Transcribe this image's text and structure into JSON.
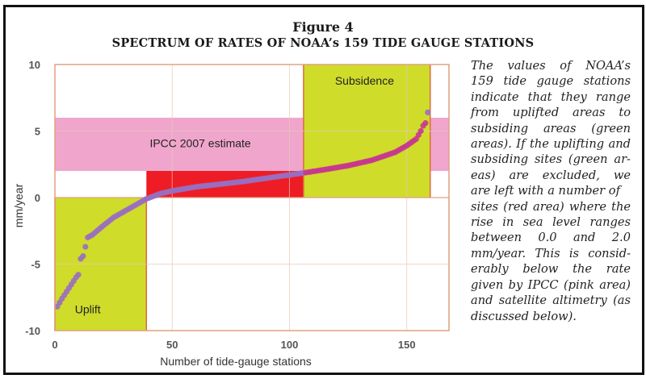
{
  "figure": {
    "number_label": "Figure 4",
    "title": "SPECTRUM OF RATES OF NOAA’s 159 TIDE GAUGE STATIONS"
  },
  "caption_lines": [
    "The values of NOAA’s",
    "159 tide gauge stations",
    "indicate that they range",
    "from uplifted areas to",
    "subsiding areas (green",
    "areas). If the uplifting and",
    "subsiding sites (green ar-",
    "eas) are excluded, we",
    "are left with a number of",
    "sites (red area) where the",
    "rise in sea level ranges",
    "between 0.0 and 2.0",
    "mm/year. This is consid-",
    "erably below the rate",
    "given by IPCC (pink area)",
    "and satellite altimetry (as",
    "discussed below)."
  ],
  "colors": {
    "uplift_subsidence": "#cfdc2a",
    "ipcc": "#f0a6cc",
    "red_area": "#ee1c24",
    "points_low": "#9a6ec0",
    "points_high": "#c8378f",
    "axis_border": "#e0a080"
  },
  "chart_data": {
    "type": "scatter",
    "title": "SPECTRUM OF RATES OF NOAA’s 159 TIDE GAUGE STATIONS",
    "xlabel": "Number of tide-gauge stations",
    "ylabel": "mm/year",
    "xlim": [
      0,
      168
    ],
    "ylim": [
      -10,
      10
    ],
    "xticks": [
      "0",
      "50",
      "100",
      "150"
    ],
    "xtick_values": [
      0,
      50,
      100,
      150
    ],
    "yticks": [
      "10",
      "5",
      "0",
      "-5",
      "-10"
    ],
    "ytick_values": [
      10,
      5,
      0,
      -5,
      -10
    ],
    "grid": true,
    "regions": [
      {
        "name": "Uplift",
        "label": "Uplift",
        "x": [
          0,
          39
        ],
        "y": [
          -10,
          0
        ],
        "color": "#cfdc2a"
      },
      {
        "name": "Subsidence",
        "label": "Subsidence",
        "x": [
          106,
          160
        ],
        "y": [
          0,
          10
        ],
        "color": "#cfdc2a"
      },
      {
        "name": "IPCC 2007 estimate",
        "label": "IPCC 2007 estimate",
        "x": [
          0,
          168
        ],
        "y": [
          2,
          6
        ],
        "color": "#f0a6cc"
      },
      {
        "name": "Red area",
        "label": "",
        "x": [
          39,
          106
        ],
        "y": [
          0,
          2
        ],
        "color": "#ee1c24"
      }
    ],
    "series": [
      {
        "name": "NOAA tide gauge stations (sorted)",
        "anchor_x": [
          1,
          3,
          6,
          9,
          10,
          11,
          12,
          13,
          14,
          16,
          20,
          25,
          30,
          35,
          39,
          45,
          50,
          60,
          70,
          80,
          90,
          100,
          106,
          115,
          125,
          135,
          145,
          150,
          154,
          156,
          157,
          158,
          159
        ],
        "anchor_y": [
          -8.2,
          -7.6,
          -6.8,
          -6.0,
          -5.8,
          -4.6,
          -4.4,
          -3.7,
          -3.0,
          -2.8,
          -2.2,
          -1.5,
          -1.0,
          -0.5,
          -0.1,
          0.3,
          0.5,
          0.8,
          1.0,
          1.2,
          1.45,
          1.7,
          1.85,
          2.1,
          2.4,
          2.8,
          3.4,
          3.9,
          4.4,
          5.0,
          5.4,
          5.6,
          6.4
        ]
      }
    ]
  }
}
